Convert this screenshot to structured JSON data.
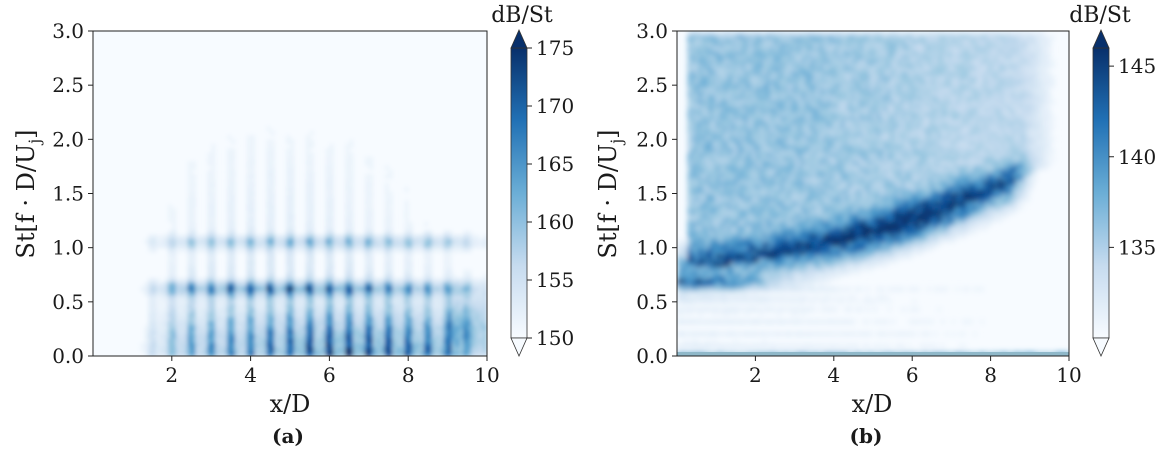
{
  "figure": {
    "panels": [
      {
        "id": "a",
        "caption": "(a)",
        "xlabel": "x/D",
        "ylabel": "St[f · D/U",
        "ylabel_sub": "j",
        "ylabel_close": "]",
        "colorbar_label": "dB/St",
        "colorbar_ticks": [
          "150",
          "155",
          "160",
          "165",
          "170",
          "175"
        ],
        "xticks": [
          "2",
          "4",
          "6",
          "8",
          "10"
        ],
        "yticks": [
          "0.0",
          "0.5",
          "1.0",
          "1.5",
          "2.0",
          "2.5",
          "3.0"
        ]
      },
      {
        "id": "b",
        "caption": "(b)",
        "xlabel": "x/D",
        "ylabel": "St[f · D/U",
        "ylabel_sub": "j",
        "ylabel_close": "]",
        "colorbar_label": "dB/St",
        "colorbar_ticks": [
          "135",
          "140",
          "145"
        ],
        "xticks": [
          "2",
          "4",
          "6",
          "8",
          "10"
        ],
        "yticks": [
          "0.0",
          "0.5",
          "1.0",
          "1.5",
          "2.0",
          "2.5",
          "3.0"
        ]
      }
    ]
  },
  "chart_data": [
    {
      "type": "heatmap",
      "panel": "(a)",
      "xlabel": "x/D",
      "ylabel": "St[f · D/Uj]",
      "xlim": [
        0,
        10
      ],
      "ylim": [
        0,
        3.0
      ],
      "colorbar": {
        "label": "dB/St",
        "min": 150,
        "max": 175,
        "ticks": [
          150,
          155,
          160,
          165,
          170,
          175
        ],
        "colormap": "Blues",
        "extend": "both"
      },
      "features": [
        {
          "description": "broadband low-frequency region",
          "x_range": [
            1.2,
            9.5
          ],
          "st_range": [
            0.0,
            0.5
          ],
          "peak_db": 175,
          "peak_x": 7.0
        },
        {
          "description": "tonal band",
          "st": 0.62,
          "x_range": [
            1.5,
            9.0
          ],
          "peak_db": 173,
          "peak_x": 5.0
        },
        {
          "description": "tonal band",
          "st": 1.05,
          "x_range": [
            1.5,
            9.0
          ],
          "peak_db": 166,
          "peak_x": 6.5
        },
        {
          "description": "periodic vertical streaks",
          "x_spacing": 0.5,
          "x_range": [
            1.0,
            9.5
          ],
          "st_range": [
            0.0,
            2.8
          ]
        }
      ],
      "colors": {
        "low": "#f7fbff",
        "high": "#08306b"
      }
    },
    {
      "type": "heatmap",
      "panel": "(b)",
      "xlabel": "x/D",
      "ylabel": "St[f · D/Uj]",
      "xlim": [
        0,
        10
      ],
      "ylim": [
        0,
        3.0
      ],
      "colorbar": {
        "label": "dB/St",
        "min": 130,
        "max": 146,
        "ticks": [
          135,
          140,
          145
        ],
        "colormap": "Blues",
        "extend": "both"
      },
      "features": [
        {
          "description": "curved high-intensity ridge",
          "points": [
            [
              0.5,
              0.82
            ],
            [
              2.0,
              0.88
            ],
            [
              3.5,
              0.98
            ],
            [
              5.0,
              1.08
            ],
            [
              6.0,
              1.2
            ],
            [
              7.0,
              1.32
            ],
            [
              8.0,
              1.48
            ]
          ],
          "peak_db": 145,
          "peak_x": 6.0
        },
        {
          "description": "diffuse high-frequency region",
          "x_range": [
            0.5,
            8.5
          ],
          "st_range": [
            1.5,
            3.0
          ],
          "level_db": 138
        },
        {
          "description": "low-frequency horizontal band",
          "st": 0.68,
          "x_range": [
            0,
            2.0
          ],
          "level_db": 140
        }
      ],
      "colors": {
        "low": "#f7fbff",
        "high": "#08306b"
      }
    }
  ]
}
